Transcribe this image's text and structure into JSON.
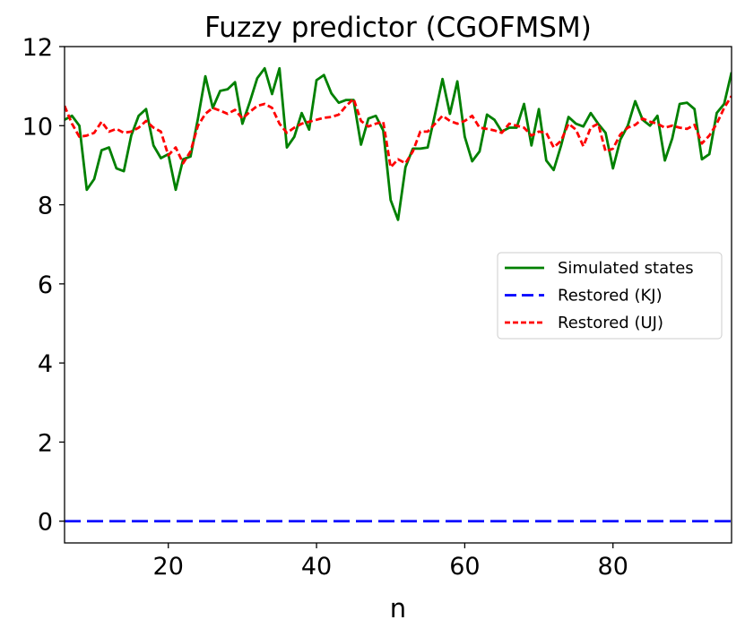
{
  "chart_data": {
    "type": "line",
    "title": "Fuzzy predictor (CGOFMSM)",
    "xlabel": "n",
    "ylabel": "",
    "xlim": [
      6,
      96
    ],
    "ylim": [
      -0.55,
      12
    ],
    "x_ticks": [
      20,
      40,
      60,
      80
    ],
    "y_ticks": [
      0,
      2,
      4,
      6,
      8,
      10,
      12
    ],
    "grid": false,
    "legend": "center-right",
    "x": [
      6,
      7,
      8,
      9,
      10,
      11,
      12,
      13,
      14,
      15,
      16,
      17,
      18,
      19,
      20,
      21,
      22,
      23,
      24,
      25,
      26,
      27,
      28,
      29,
      30,
      31,
      32,
      33,
      34,
      35,
      36,
      37,
      38,
      39,
      40,
      41,
      42,
      43,
      44,
      45,
      46,
      47,
      48,
      49,
      50,
      51,
      52,
      53,
      54,
      55,
      56,
      57,
      58,
      59,
      60,
      61,
      62,
      63,
      64,
      65,
      66,
      67,
      68,
      69,
      70,
      71,
      72,
      73,
      74,
      75,
      76,
      77,
      78,
      79,
      80,
      81,
      82,
      83,
      84,
      85,
      86,
      87,
      88,
      89,
      90,
      91,
      92,
      93,
      94,
      95,
      96
    ],
    "series": [
      {
        "name": "Simulated states",
        "color": "#008000",
        "style": "solid",
        "values": [
          10.15,
          10.25,
          10.0,
          8.38,
          8.65,
          9.38,
          9.45,
          8.92,
          8.85,
          9.75,
          10.25,
          10.42,
          9.5,
          9.18,
          9.28,
          8.38,
          9.15,
          9.22,
          10.18,
          11.25,
          10.45,
          10.88,
          10.92,
          11.1,
          10.05,
          10.6,
          11.2,
          11.45,
          10.8,
          11.45,
          9.45,
          9.72,
          10.32,
          9.9,
          11.15,
          11.28,
          10.82,
          10.58,
          10.65,
          10.65,
          9.52,
          10.18,
          10.25,
          9.88,
          8.12,
          7.62,
          8.95,
          9.42,
          9.42,
          9.45,
          10.3,
          11.18,
          10.3,
          11.12,
          9.72,
          9.1,
          9.35,
          10.28,
          10.15,
          9.85,
          9.95,
          9.95,
          10.55,
          9.5,
          10.42,
          9.12,
          8.88,
          9.5,
          10.22,
          10.05,
          9.98,
          10.32,
          10.05,
          9.82,
          8.92,
          9.65,
          10.0,
          10.62,
          10.15,
          10.0,
          10.25,
          9.12,
          9.68,
          10.55,
          10.58,
          10.42,
          9.15,
          9.28,
          10.32,
          10.55,
          11.35
        ]
      },
      {
        "name": "Restored (KJ)",
        "color": "#0000ff",
        "style": "dashed",
        "values": [
          0,
          0,
          0,
          0,
          0,
          0,
          0,
          0,
          0,
          0,
          0,
          0,
          0,
          0,
          0,
          0,
          0,
          0,
          0,
          0,
          0,
          0,
          0,
          0,
          0,
          0,
          0,
          0,
          0,
          0,
          0,
          0,
          0,
          0,
          0,
          0,
          0,
          0,
          0,
          0,
          0,
          0,
          0,
          0,
          0,
          0,
          0,
          0,
          0,
          0,
          0,
          0,
          0,
          0,
          0,
          0,
          0,
          0,
          0,
          0,
          0,
          0,
          0,
          0,
          0,
          0,
          0,
          0,
          0,
          0,
          0,
          0,
          0,
          0,
          0,
          0,
          0,
          0,
          0,
          0,
          0,
          0,
          0,
          0,
          0,
          0,
          0,
          0,
          0,
          0,
          0
        ]
      },
      {
        "name": "Restored (UJ)",
        "color": "#ff0000",
        "style": "dotted",
        "values": [
          10.5,
          10.05,
          9.72,
          9.75,
          9.82,
          10.1,
          9.85,
          9.92,
          9.82,
          9.85,
          9.95,
          10.12,
          9.95,
          9.85,
          9.25,
          9.45,
          9.05,
          9.35,
          10.0,
          10.3,
          10.45,
          10.38,
          10.3,
          10.4,
          10.18,
          10.35,
          10.5,
          10.55,
          10.45,
          10.05,
          9.82,
          9.95,
          10.05,
          10.1,
          10.15,
          10.2,
          10.22,
          10.28,
          10.5,
          10.68,
          10.12,
          9.98,
          10.05,
          10.1,
          8.95,
          9.15,
          9.05,
          9.35,
          9.85,
          9.85,
          10.05,
          10.25,
          10.12,
          10.05,
          10.12,
          10.25,
          9.95,
          9.92,
          9.88,
          9.82,
          10.05,
          10.0,
          9.95,
          9.75,
          9.85,
          9.82,
          9.45,
          9.62,
          10.05,
          9.9,
          9.48,
          9.95,
          10.05,
          9.35,
          9.42,
          9.78,
          9.95,
          10.02,
          10.18,
          10.1,
          10.05,
          9.95,
          10.0,
          9.95,
          9.92,
          10.02,
          9.55,
          9.75,
          10.05,
          10.45,
          10.75
        ]
      }
    ]
  }
}
